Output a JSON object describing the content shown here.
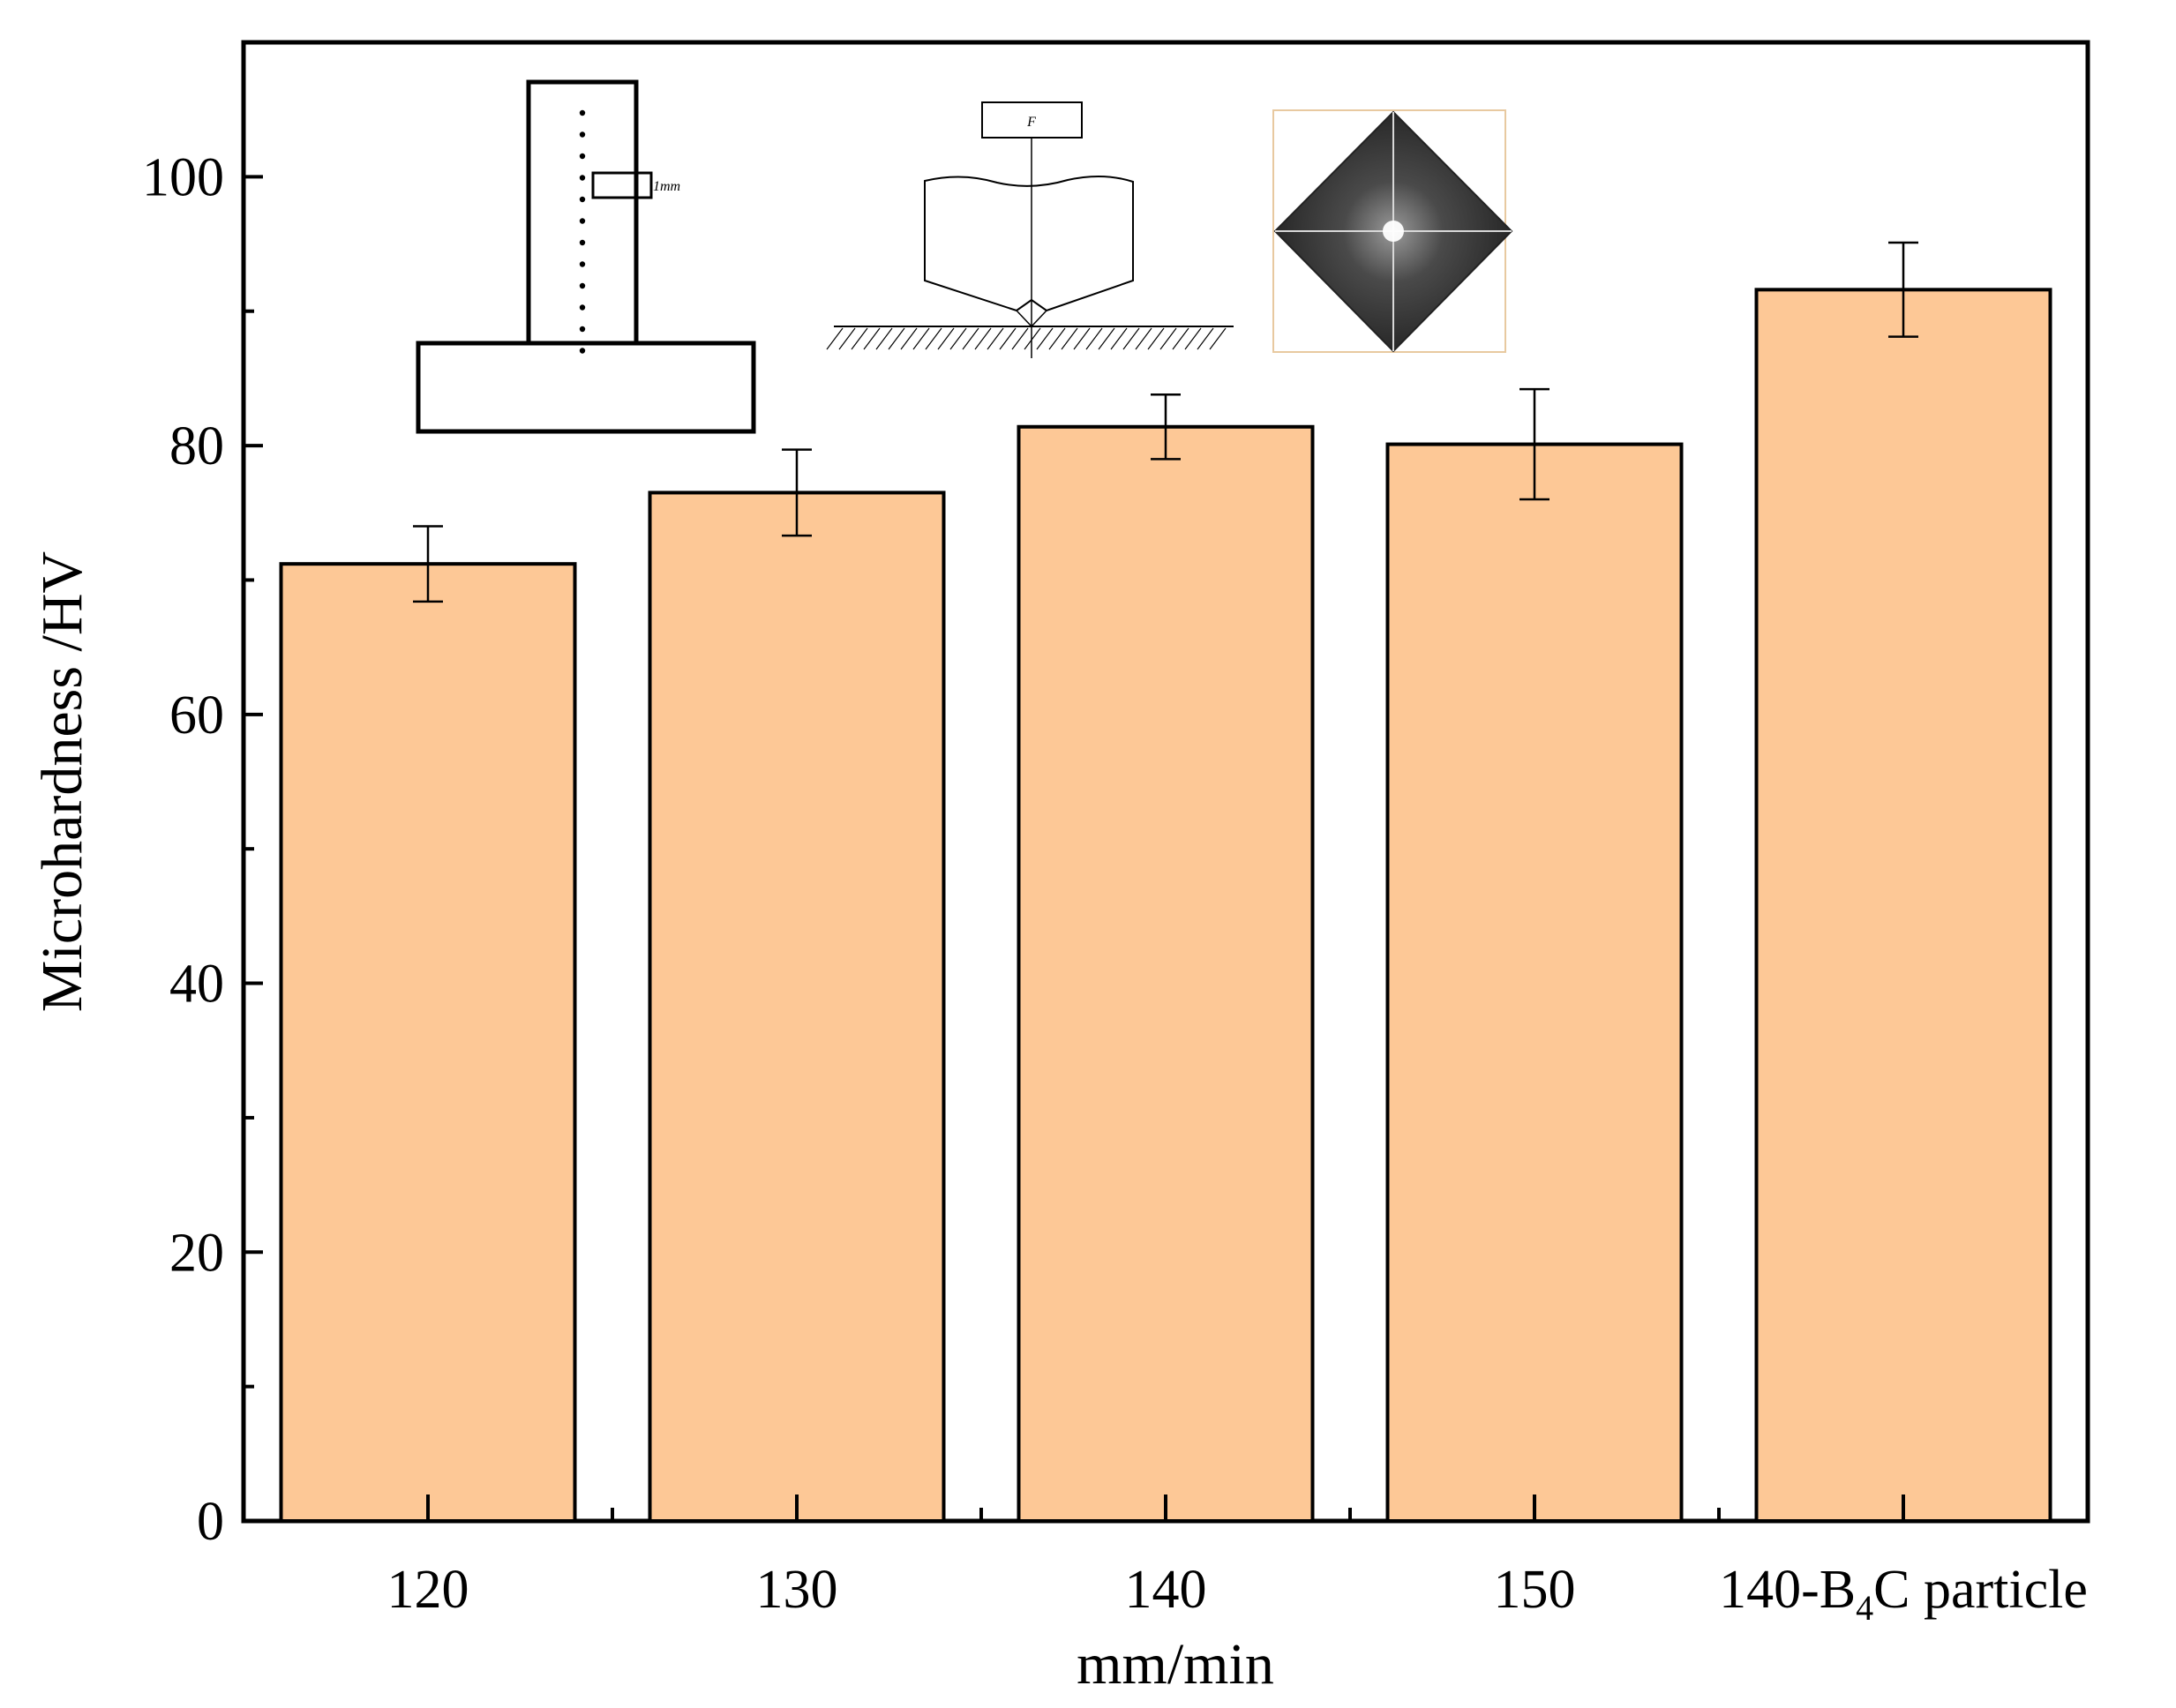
{
  "chart_data": {
    "type": "bar",
    "categories": [
      "120",
      "130",
      "140",
      "150",
      "140-B4C particle"
    ],
    "category_display": [
      {
        "main": "120"
      },
      {
        "main": "130"
      },
      {
        "main": "140"
      },
      {
        "main": "150"
      },
      {
        "pre": "140-B",
        "sub": "4",
        "post": "C particle"
      }
    ],
    "values": [
      71.2,
      76.5,
      81.4,
      80.1,
      91.6
    ],
    "errors": [
      2.8,
      3.2,
      2.4,
      4.1,
      3.5
    ],
    "xlabel": "mm/min",
    "ylabel": "Microhardness /HV",
    "ylim": [
      0,
      110
    ],
    "yticks": [
      0,
      20,
      40,
      60,
      80,
      100
    ],
    "yticks_minor": [
      10,
      30,
      50,
      70,
      90
    ],
    "bar_color": "#FDC896",
    "grid": false,
    "legend": "none",
    "insets": {
      "sample_scale_label": "1mm",
      "indenter_force_label": "F"
    }
  }
}
